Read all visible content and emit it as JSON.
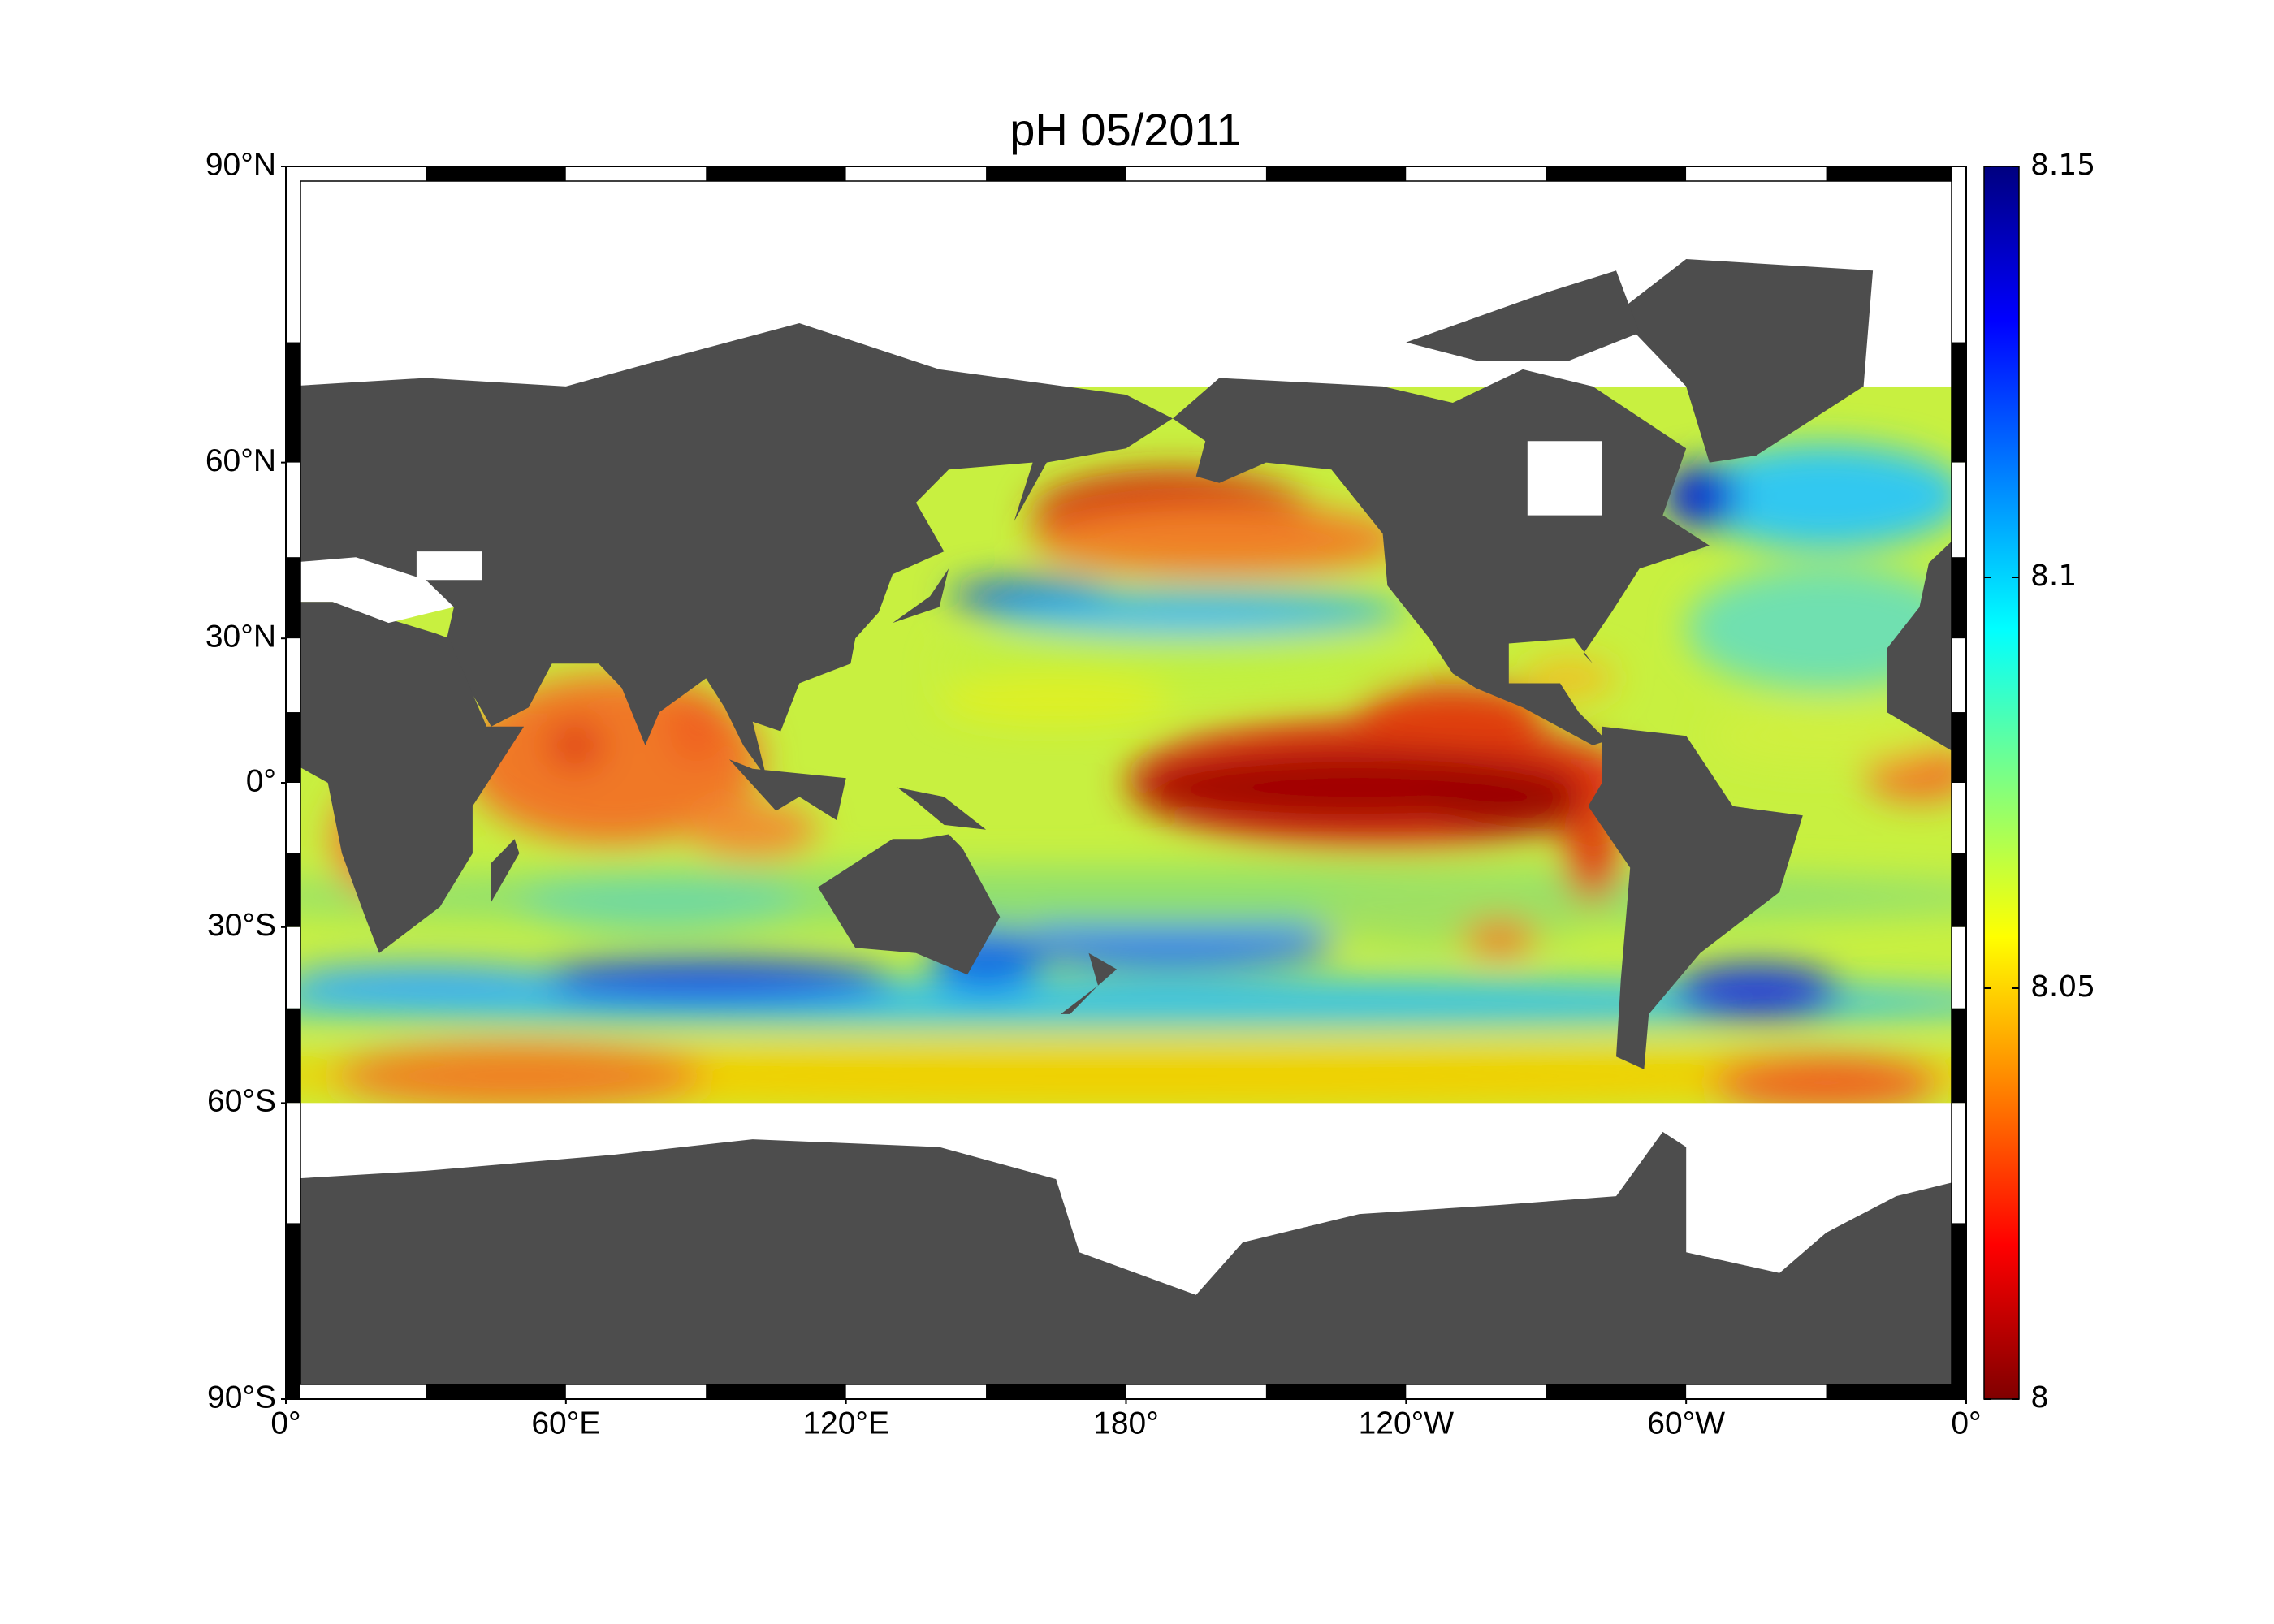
{
  "map": {
    "title": "pH  05/2011",
    "lat_ticks": [
      {
        "value": 90,
        "label": "90°N"
      },
      {
        "value": 60,
        "label": "60°N"
      },
      {
        "value": 30,
        "label": "30°N"
      },
      {
        "value": 0,
        "label": "0°"
      },
      {
        "value": -30,
        "label": "30°S"
      },
      {
        "value": -60,
        "label": "60°S"
      },
      {
        "value": -90,
        "label": "90°S"
      }
    ],
    "lon_ticks": [
      {
        "value": 0,
        "label": "0°"
      },
      {
        "value": 60,
        "label": "60°E"
      },
      {
        "value": 120,
        "label": "120°E"
      },
      {
        "value": 180,
        "label": "180°"
      },
      {
        "value": 240,
        "label": "120°W"
      },
      {
        "value": 300,
        "label": "60°W"
      },
      {
        "value": 360,
        "label": "0°"
      }
    ],
    "colorbar": {
      "range": [
        8,
        8.15
      ],
      "ticks": [
        8,
        8.05,
        8.1,
        8.15
      ],
      "colormap": [
        "#800000",
        "#ff0000",
        "#ff8000",
        "#ffff00",
        "#80ff80",
        "#00ffff",
        "#0080ff",
        "#0000ff",
        "#000080"
      ]
    }
  }
}
